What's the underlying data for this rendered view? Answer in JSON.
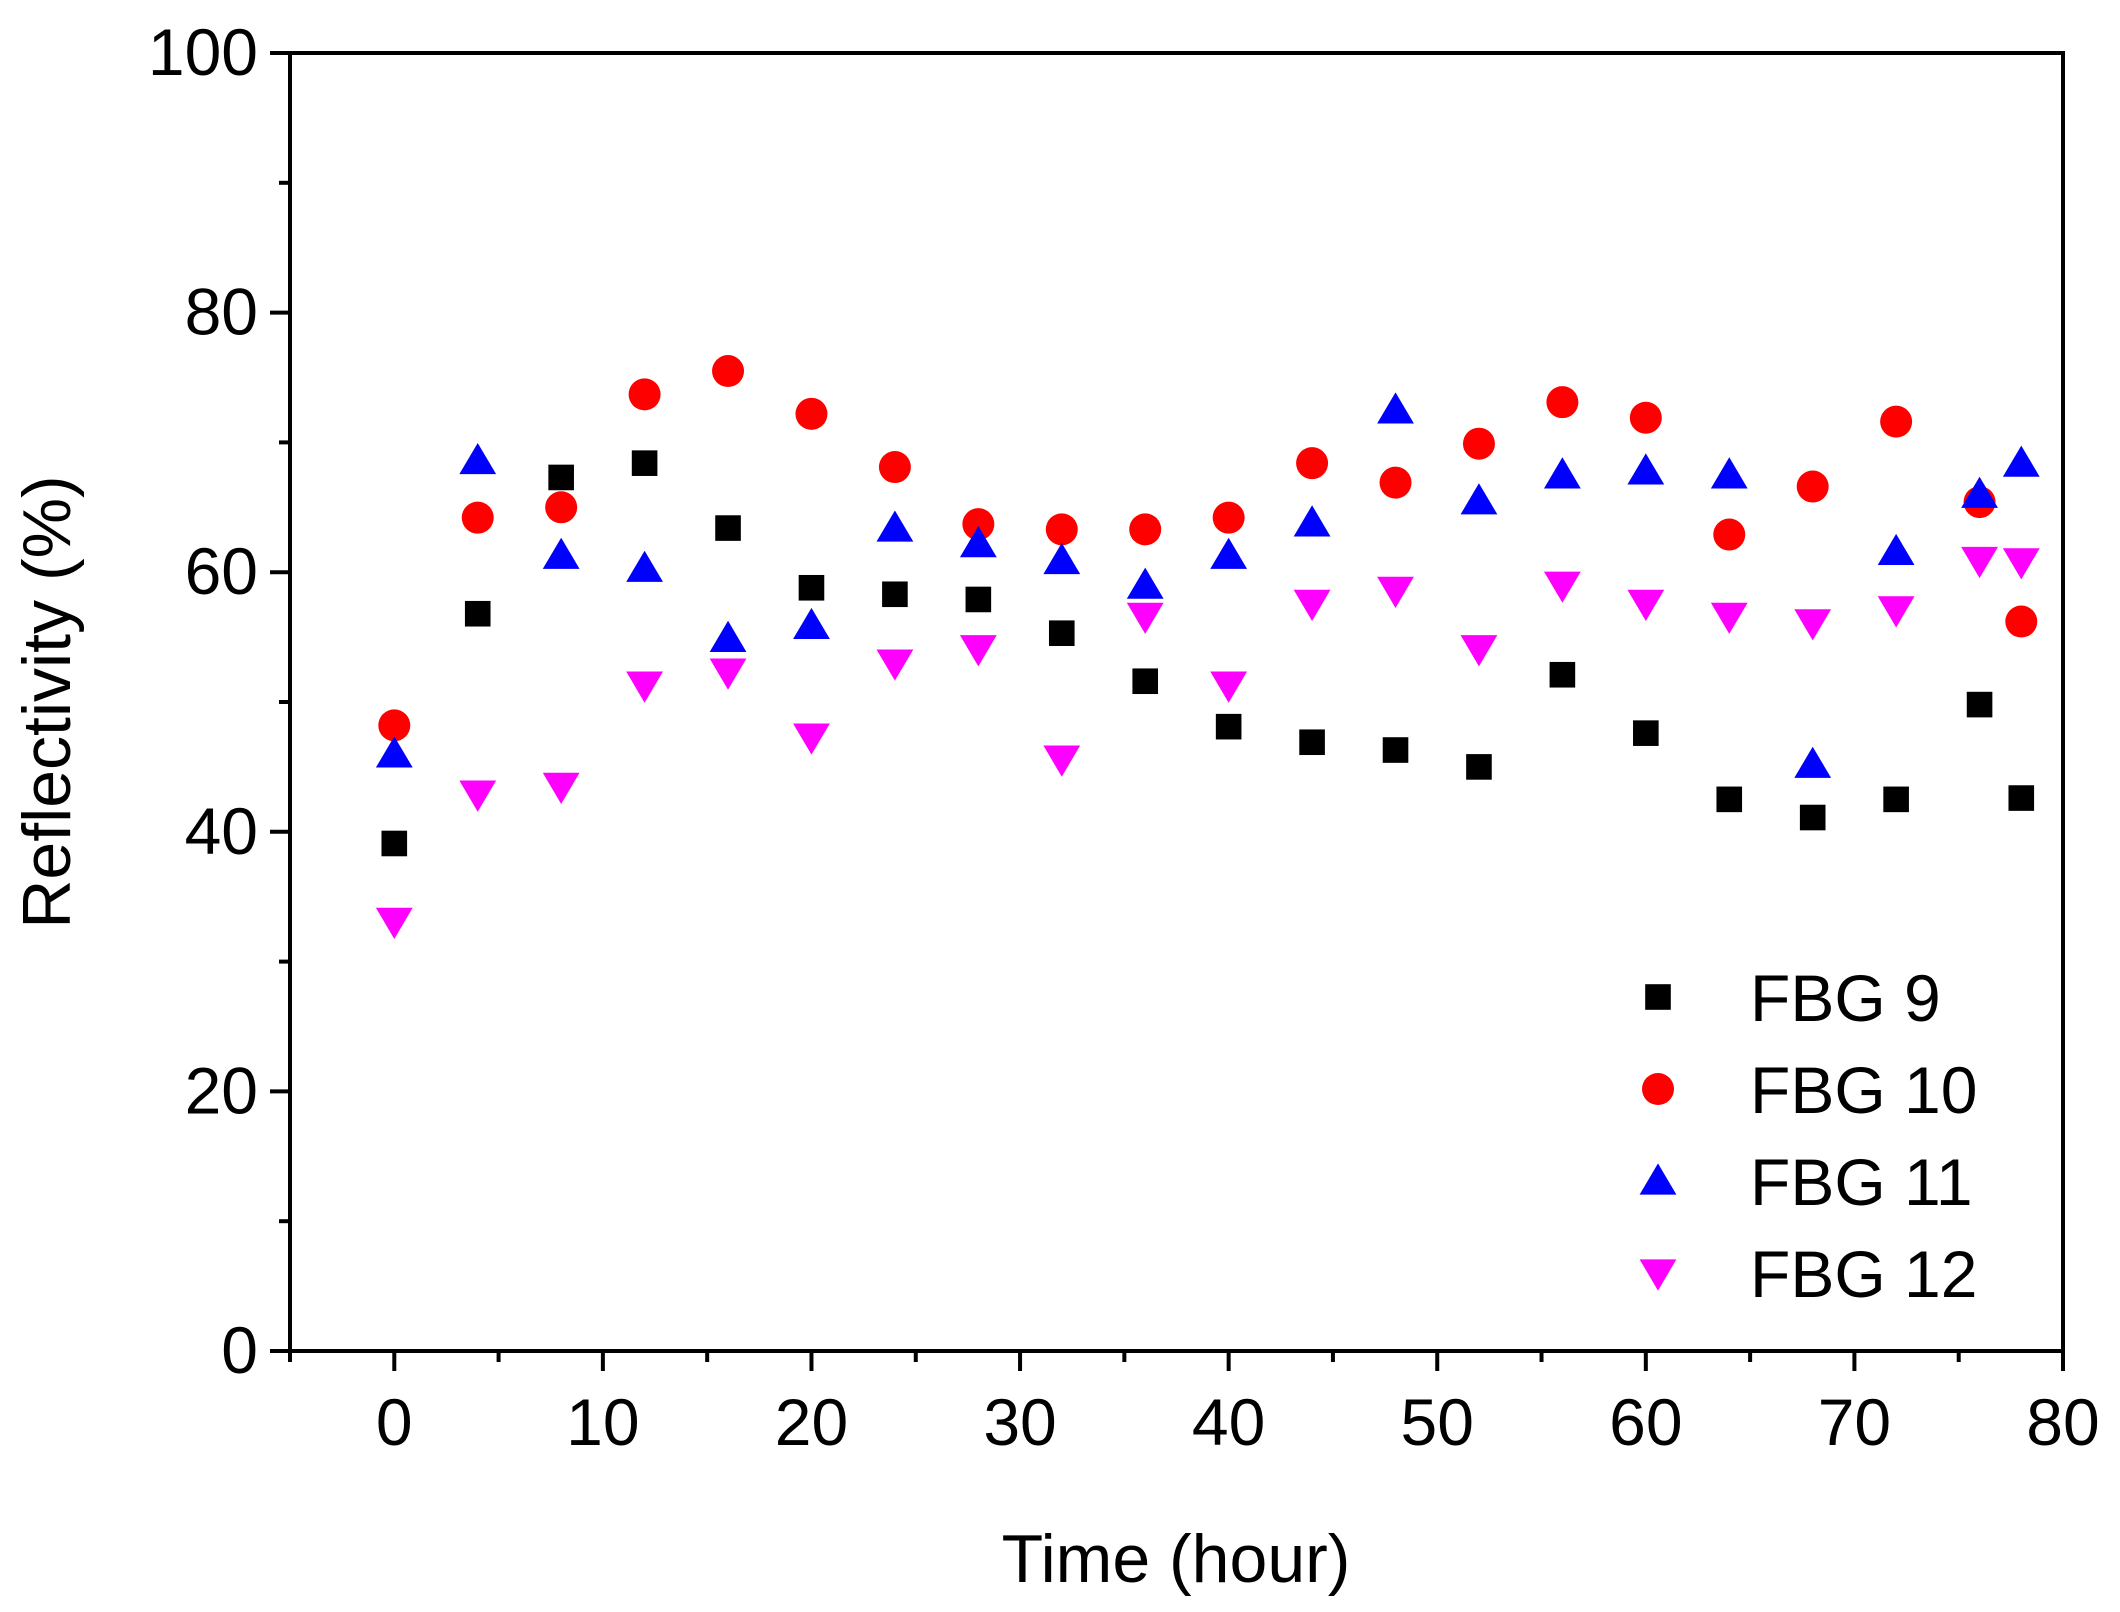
{
  "chart_data": {
    "type": "scatter",
    "title": "",
    "xlabel": "Time (hour)",
    "ylabel": "Reflectivity (%)",
    "xlim": [
      -5,
      80
    ],
    "ylim": [
      0,
      100
    ],
    "xticks": [
      0,
      10,
      20,
      30,
      40,
      50,
      60,
      70,
      80
    ],
    "yticks": [
      0,
      20,
      40,
      60,
      80,
      100
    ],
    "x": [
      0,
      4,
      8,
      12,
      16,
      20,
      24,
      28,
      32,
      36,
      40,
      44,
      48,
      52,
      56,
      60,
      64,
      68,
      72,
      76,
      78
    ],
    "legend_position": "bottom-right",
    "series": [
      {
        "name": "FBG 9",
        "marker": "square",
        "color": "#000000",
        "values": [
          39.1,
          56.8,
          67.3,
          68.4,
          63.4,
          58.8,
          58.3,
          57.9,
          55.3,
          51.6,
          48.1,
          46.9,
          46.3,
          45.0,
          52.1,
          47.6,
          42.5,
          41.1,
          42.5,
          49.8,
          42.6
        ]
      },
      {
        "name": "FBG 10",
        "marker": "circle",
        "color": "#ff0000",
        "values": [
          48.2,
          64.2,
          65.0,
          73.7,
          75.5,
          72.2,
          68.1,
          63.7,
          63.3,
          63.3,
          64.2,
          68.4,
          66.9,
          69.9,
          73.1,
          71.9,
          62.9,
          66.6,
          71.6,
          65.4,
          56.2
        ]
      },
      {
        "name": "FBG 11",
        "marker": "triangle-up",
        "color": "#0000ff",
        "values": [
          46.0,
          68.6,
          61.3,
          60.3,
          54.9,
          55.9,
          63.4,
          62.2,
          60.9,
          59.0,
          61.3,
          63.8,
          72.5,
          65.5,
          67.5,
          67.8,
          67.5,
          45.2,
          61.6,
          66.0,
          68.4
        ]
      },
      {
        "name": "FBG 12",
        "marker": "triangle-down",
        "color": "#ff00ff",
        "values": [
          33.1,
          42.9,
          43.5,
          51.3,
          52.3,
          47.3,
          53.0,
          54.1,
          45.6,
          56.6,
          51.3,
          57.6,
          58.6,
          54.1,
          59.0,
          57.6,
          56.6,
          56.1,
          57.1,
          60.9,
          60.8
        ]
      }
    ]
  }
}
